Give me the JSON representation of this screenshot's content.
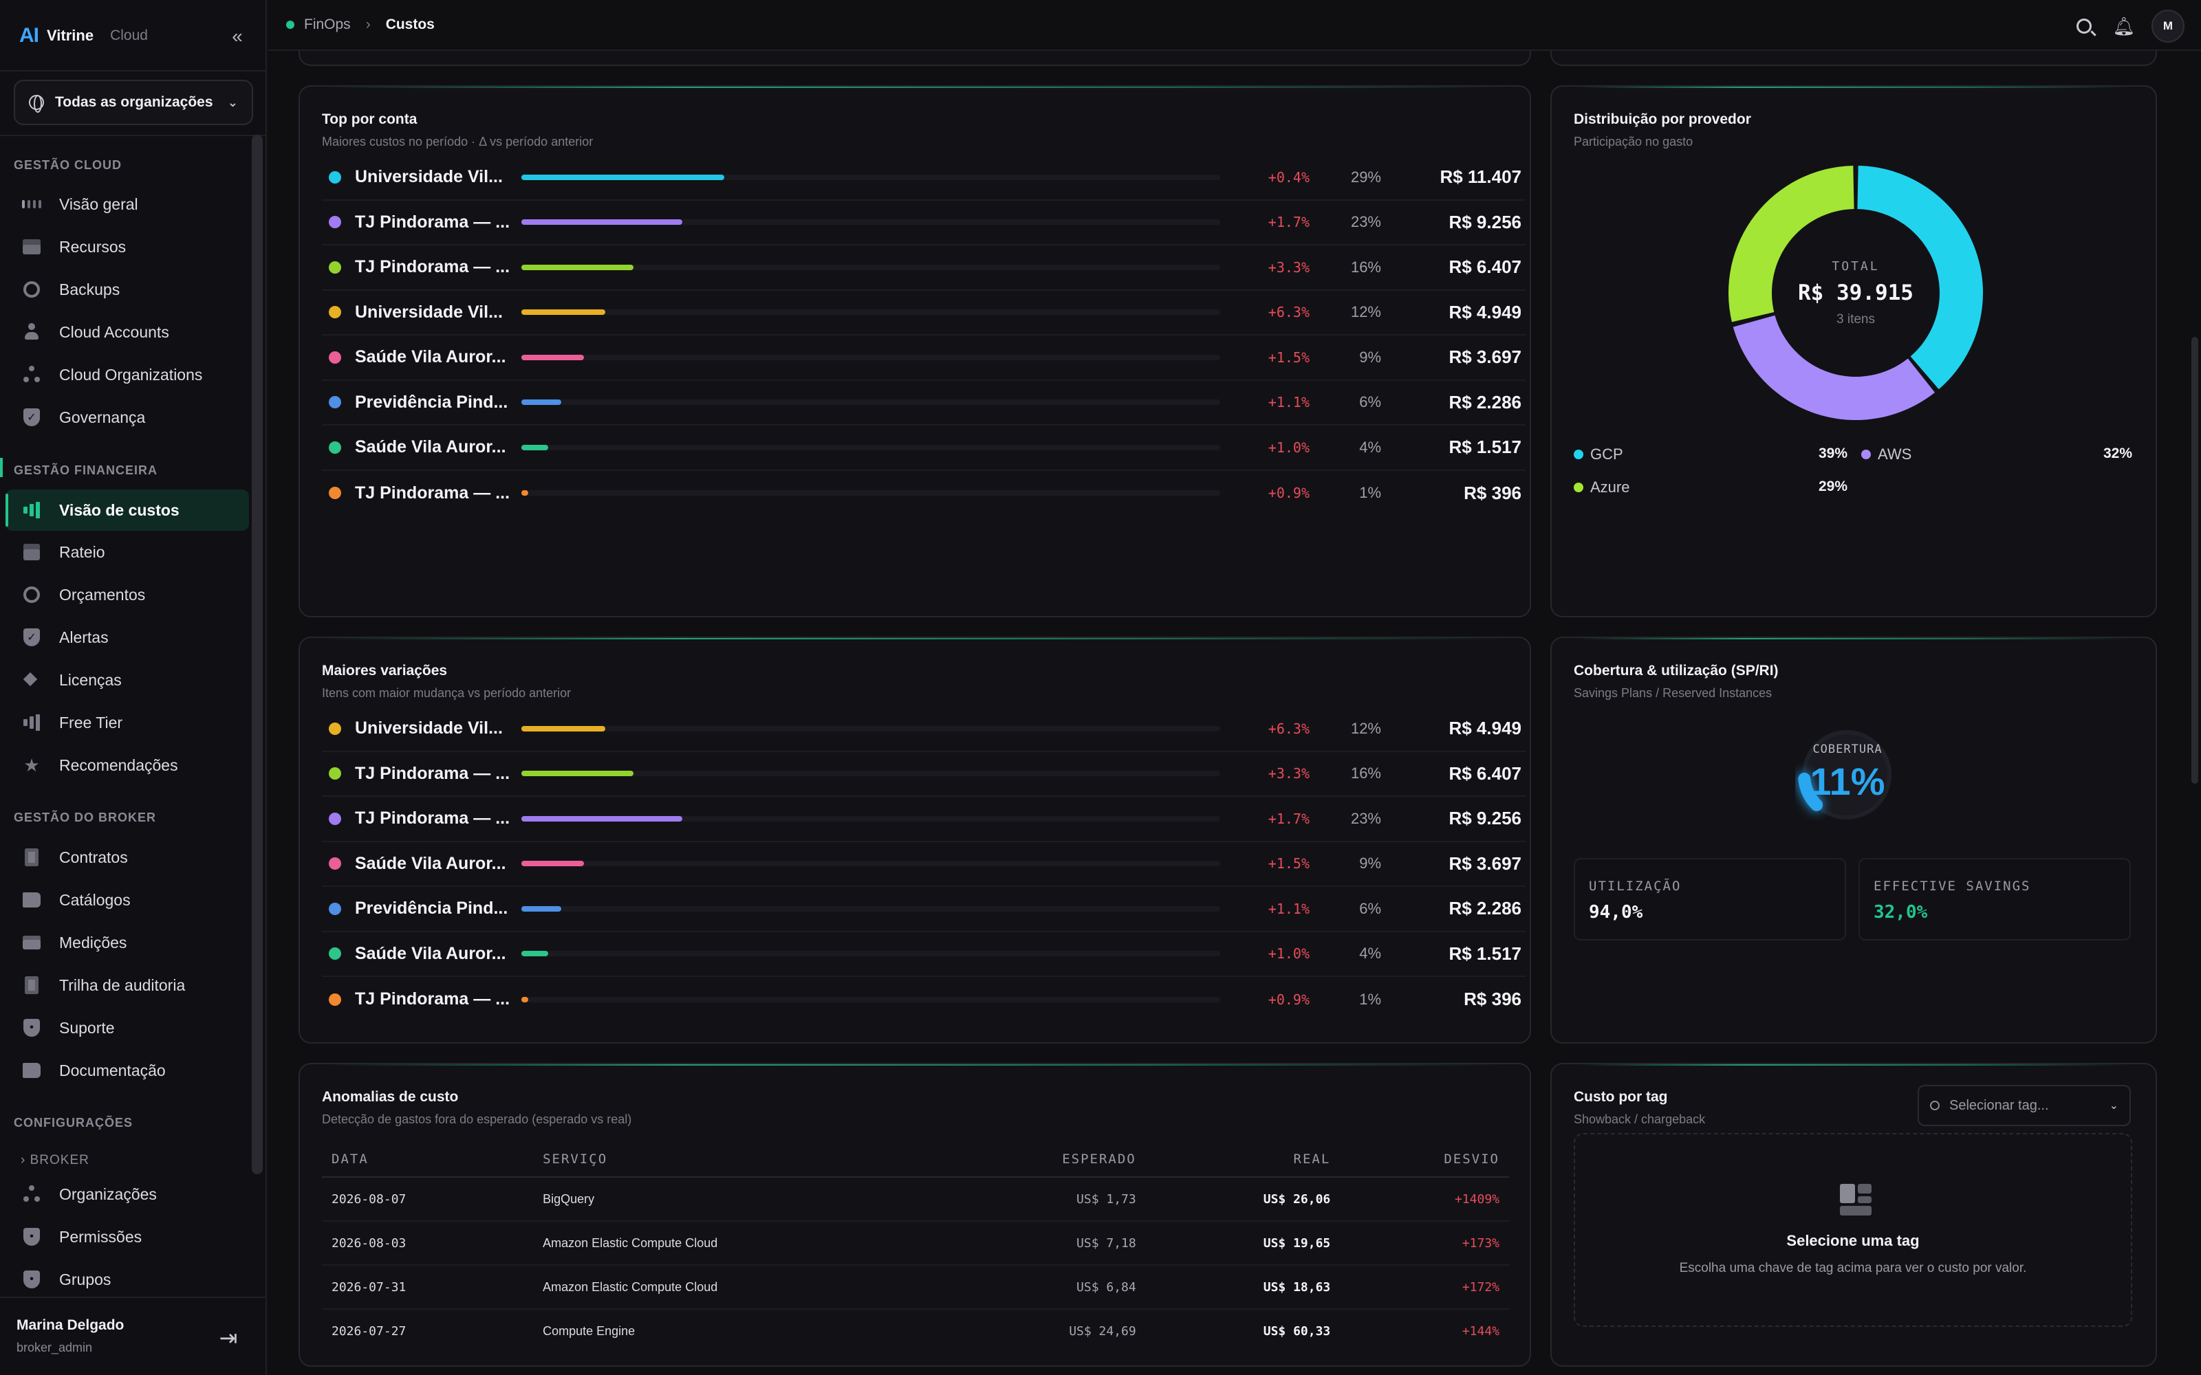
{
  "brand": {
    "logo": "AI",
    "name": "Vitrine",
    "sub": "Cloud"
  },
  "org_selector": {
    "value": "Todas as organizações"
  },
  "nav": {
    "sections": [
      {
        "label": "GESTÃO CLOUD"
      },
      {
        "label": "GESTÃO FINANCEIRA"
      },
      {
        "label": "GESTÃO DO BROKER"
      },
      {
        "label": "CONFIGURAÇÕES"
      }
    ],
    "items": [
      {
        "label": "Visão geral",
        "icon": "grid-icon"
      },
      {
        "label": "Recursos",
        "icon": "server-icon"
      },
      {
        "label": "Backups",
        "icon": "backup-icon"
      },
      {
        "label": "Cloud Accounts",
        "icon": "user-icon"
      },
      {
        "label": "Cloud Organizations",
        "icon": "hierarchy-icon"
      },
      {
        "label": "Governança",
        "icon": "shield-check-icon"
      },
      {
        "label": "Visão de custos",
        "icon": "bar-chart-icon",
        "active": true
      },
      {
        "label": "Rateio",
        "icon": "split-icon"
      },
      {
        "label": "Orçamentos",
        "icon": "target-icon"
      },
      {
        "label": "Alertas",
        "icon": "shield-check-icon"
      },
      {
        "label": "Licenças",
        "icon": "layers-icon"
      },
      {
        "label": "Free Tier",
        "icon": "bar-chart-icon"
      },
      {
        "label": "Recomendações",
        "icon": "star-icon"
      },
      {
        "label": "Contratos",
        "icon": "document-icon"
      },
      {
        "label": "Catálogos",
        "icon": "book-icon"
      },
      {
        "label": "Medições",
        "icon": "card-icon"
      },
      {
        "label": "Trilha de auditoria",
        "icon": "checklist-icon"
      },
      {
        "label": "Suporte",
        "icon": "shield-icon"
      },
      {
        "label": "Documentação",
        "icon": "book-open-icon"
      },
      {
        "label": "Organizações",
        "icon": "hierarchy-icon"
      },
      {
        "label": "Permissões",
        "icon": "shield-icon"
      },
      {
        "label": "Grupos",
        "icon": "shield-icon"
      }
    ],
    "sub_toggle": "BROKER"
  },
  "user": {
    "name": "Marina Delgado",
    "role": "broker_admin"
  },
  "breadcrumb": {
    "parent": "FinOps",
    "current": "Custos"
  },
  "topbar": {
    "avatar": "M"
  },
  "colors": {
    "accent": "#22c58c",
    "negative": "#e84c5a",
    "gcp": "#22d3ee",
    "aws": "#a78bfa",
    "azure": "#a3e635"
  },
  "top_accounts": {
    "title": "Top por conta",
    "subtitle": "Maiores custos no período · Δ vs período anterior",
    "rows": [
      {
        "name": "Universidade Vil...",
        "color": "#22c7e6",
        "bar": 0.29,
        "delta": "+0.4%",
        "pct": "29%",
        "value": "R$ 11.407"
      },
      {
        "name": "TJ Pindorama — ...",
        "color": "#a07cf0",
        "bar": 0.23,
        "delta": "+1.7%",
        "pct": "23%",
        "value": "R$ 9.256"
      },
      {
        "name": "TJ Pindorama — ...",
        "color": "#94d22e",
        "bar": 0.16,
        "delta": "+3.3%",
        "pct": "16%",
        "value": "R$ 6.407"
      },
      {
        "name": "Universidade Vil...",
        "color": "#e8b024",
        "bar": 0.12,
        "delta": "+6.3%",
        "pct": "12%",
        "value": "R$ 4.949"
      },
      {
        "name": "Saúde Vila Auror...",
        "color": "#ea5f98",
        "bar": 0.09,
        "delta": "+1.5%",
        "pct": "9%",
        "value": "R$ 3.697"
      },
      {
        "name": "Previdência Pind...",
        "color": "#4f8fe6",
        "bar": 0.057,
        "delta": "+1.1%",
        "pct": "6%",
        "value": "R$ 2.286"
      },
      {
        "name": "Saúde Vila Auror...",
        "color": "#2cc58a",
        "bar": 0.038,
        "delta": "+1.0%",
        "pct": "4%",
        "value": "R$ 1.517"
      },
      {
        "name": "TJ Pindorama — ...",
        "color": "#f2892e",
        "bar": 0.01,
        "delta": "+0.9%",
        "pct": "1%",
        "value": "R$ 396"
      }
    ]
  },
  "top_variations": {
    "title": "Maiores variações",
    "subtitle": "Itens com maior mudança vs período anterior",
    "rows": [
      {
        "name": "Universidade Vil...",
        "color": "#e8b024",
        "bar": 0.12,
        "delta": "+6.3%",
        "pct": "12%",
        "value": "R$ 4.949"
      },
      {
        "name": "TJ Pindorama — ...",
        "color": "#94d22e",
        "bar": 0.16,
        "delta": "+3.3%",
        "pct": "16%",
        "value": "R$ 6.407"
      },
      {
        "name": "TJ Pindorama — ...",
        "color": "#a07cf0",
        "bar": 0.23,
        "delta": "+1.7%",
        "pct": "23%",
        "value": "R$ 9.256"
      },
      {
        "name": "Saúde Vila Auror...",
        "color": "#ea5f98",
        "bar": 0.09,
        "delta": "+1.5%",
        "pct": "9%",
        "value": "R$ 3.697"
      },
      {
        "name": "Previdência Pind...",
        "color": "#4f8fe6",
        "bar": 0.057,
        "delta": "+1.1%",
        "pct": "6%",
        "value": "R$ 2.286"
      },
      {
        "name": "Saúde Vila Auror...",
        "color": "#2cc58a",
        "bar": 0.038,
        "delta": "+1.0%",
        "pct": "4%",
        "value": "R$ 1.517"
      },
      {
        "name": "TJ Pindorama — ...",
        "color": "#f2892e",
        "bar": 0.01,
        "delta": "+0.9%",
        "pct": "1%",
        "value": "R$ 396"
      }
    ]
  },
  "provider": {
    "title": "Distribuição por provedor",
    "subtitle": "Participação no gasto",
    "center_label": "TOTAL",
    "center_value": "R$ 39.915",
    "center_items": "3 itens",
    "legend": [
      {
        "name": "GCP",
        "pct": "39%"
      },
      {
        "name": "AWS",
        "pct": "32%"
      },
      {
        "name": "Azure",
        "pct": "29%"
      }
    ]
  },
  "chart_data": {
    "type": "pie",
    "title": "Distribuição por provedor",
    "categories": [
      "GCP",
      "AWS",
      "Azure"
    ],
    "values": [
      39,
      32,
      29
    ],
    "colors": [
      "#22d3ee",
      "#a78bfa",
      "#a3e635"
    ]
  },
  "coverage": {
    "title": "Cobertura & utilização (SP/RI)",
    "subtitle": "Savings Plans / Reserved Instances",
    "label": "COBERTURA",
    "value": "11%",
    "fraction": 0.11,
    "utilization_label": "UTILIZAÇÃO",
    "utilization_value": "94,0%",
    "savings_label": "EFFECTIVE SAVINGS",
    "savings_value": "32,0%"
  },
  "anomalies": {
    "title": "Anomalias de custo",
    "subtitle": "Detecção de gastos fora do esperado (esperado vs real)",
    "headers": {
      "date": "DATA",
      "service": "SERVIÇO",
      "expected": "ESPERADO",
      "real": "REAL",
      "deviation": "DESVIO"
    },
    "rows": [
      {
        "date": "2026-08-07",
        "service": "BigQuery",
        "expected": "US$ 1,73",
        "real": "US$ 26,06",
        "deviation": "+1409%"
      },
      {
        "date": "2026-08-03",
        "service": "Amazon Elastic Compute Cloud",
        "expected": "US$ 7,18",
        "real": "US$ 19,65",
        "deviation": "+173%"
      },
      {
        "date": "2026-07-31",
        "service": "Amazon Elastic Compute Cloud",
        "expected": "US$ 6,84",
        "real": "US$ 18,63",
        "deviation": "+172%"
      },
      {
        "date": "2026-07-27",
        "service": "Compute Engine",
        "expected": "US$ 24,69",
        "real": "US$ 60,33",
        "deviation": "+144%"
      }
    ]
  },
  "tag_cost": {
    "title": "Custo por tag",
    "subtitle": "Showback / chargeback",
    "select_placeholder": "Selecionar tag...",
    "empty_title": "Selecione uma tag",
    "empty_desc": "Escolha uma chave de tag acima para ver o custo por valor."
  }
}
